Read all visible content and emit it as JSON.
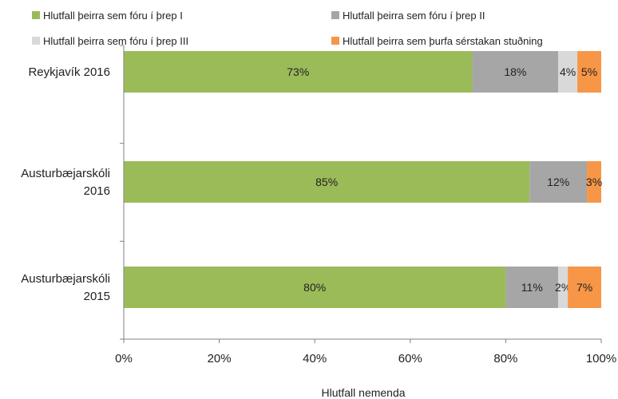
{
  "chart_data": {
    "type": "bar",
    "orientation": "horizontal",
    "stacked": true,
    "categories": [
      [
        "Reykjavík 2016"
      ],
      [
        "Austurbæjarskóli",
        "2016"
      ],
      [
        "Austurbæjarskóli",
        "2015"
      ]
    ],
    "series": [
      {
        "name": "Hlutfall þeirra sem fóru í þrep I",
        "color": "#9bbb59",
        "values": [
          73,
          85,
          80
        ],
        "labels": [
          "73%",
          "85%",
          "80%"
        ]
      },
      {
        "name": "Hlutfall þeirra sem fóru í þrep II",
        "color": "#a6a6a6",
        "values": [
          18,
          12,
          11
        ],
        "labels": [
          "18%",
          "12%",
          "11%"
        ]
      },
      {
        "name": "Hlutfall þeirra sem fóru í þrep III",
        "color": "#d9d9d9",
        "values": [
          4,
          0,
          2
        ],
        "labels": [
          "4%",
          "",
          "2%"
        ]
      },
      {
        "name": "Hlutfall þeirra sem þurfa sérstakan stuðning",
        "color": "#f79646",
        "values": [
          5,
          3,
          7
        ],
        "labels": [
          "5%",
          "3%",
          "7%"
        ]
      }
    ],
    "xlabel": "Hlutfall nemenda",
    "xlim": [
      0,
      100
    ],
    "xticks": [
      "0%",
      "20%",
      "40%",
      "60%",
      "80%",
      "100%"
    ],
    "legend": "top"
  }
}
